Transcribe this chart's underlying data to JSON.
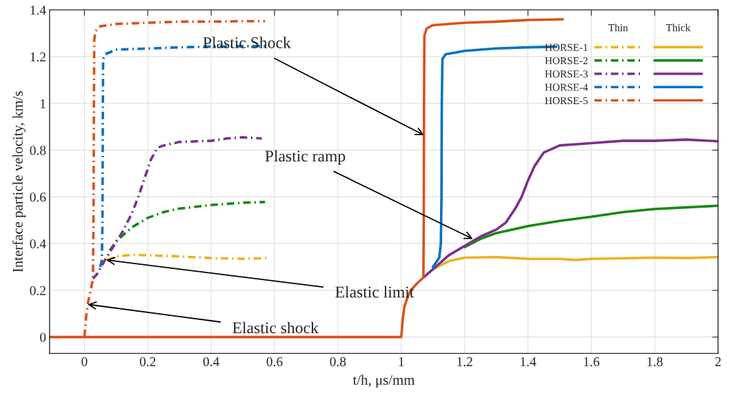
{
  "chart_data": {
    "type": "line",
    "xlabel": "t/h, μs/mm",
    "ylabel": "Interface particle velocity, km/s",
    "xlim": [
      -0.11,
      2
    ],
    "ylim": [
      -0.07,
      1.4
    ],
    "xticks": [
      0,
      0.2,
      0.4,
      0.6,
      0.8,
      1,
      1.2,
      1.4,
      1.6,
      1.8,
      2
    ],
    "yticks": [
      0,
      0.2,
      0.4,
      0.6,
      0.8,
      1,
      1.2,
      1.4
    ],
    "grid": true,
    "legend": "top right",
    "annotations": [
      {
        "text": "Plastic Shock",
        "x": 1.072,
        "y": 0.864
      },
      {
        "text": "Plastic ramp",
        "x": 1.226,
        "y": 0.42
      },
      {
        "text": "Elastic limit",
        "x": 0.069,
        "y": 0.33
      },
      {
        "text": "Elastic shock",
        "x": 0.01,
        "y": 0.14
      },
      "Thin",
      "Thick"
    ],
    "series": [
      {
        "name": "HORSE-1",
        "color": "#edb120",
        "line_style": "dashdot",
        "x": [
          0.07,
          0.1,
          0.15,
          0.2,
          0.3,
          0.4,
          0.5,
          0.58
        ],
        "values": [
          0.33,
          0.345,
          0.352,
          0.35,
          0.345,
          0.338,
          0.335,
          0.338
        ]
      },
      {
        "name": "HORSE-2",
        "color": "#128a12",
        "line_style": "dashdot",
        "x": [
          0.08,
          0.1,
          0.15,
          0.2,
          0.25,
          0.3,
          0.4,
          0.5,
          0.57
        ],
        "values": [
          0.37,
          0.41,
          0.47,
          0.51,
          0.535,
          0.55,
          0.565,
          0.575,
          0.578
        ]
      },
      {
        "name": "HORSE-3",
        "color": "#7e2f8e",
        "line_style": "dashdot",
        "x": [
          0.027,
          0.04,
          0.065,
          0.12,
          0.15,
          0.17,
          0.19,
          0.21,
          0.23,
          0.25,
          0.3,
          0.4,
          0.45,
          0.5,
          0.56
        ],
        "values": [
          0.25,
          0.27,
          0.33,
          0.45,
          0.53,
          0.6,
          0.68,
          0.76,
          0.81,
          0.82,
          0.835,
          0.84,
          0.85,
          0.855,
          0.85
        ]
      },
      {
        "name": "HORSE-4",
        "color": "#0072bd",
        "line_style": "dashdot",
        "x": [
          0.05,
          0.055,
          0.057,
          0.058,
          0.059,
          0.065,
          0.1,
          0.2,
          0.3,
          0.4,
          0.5,
          0.57
        ],
        "values": [
          0.3,
          0.33,
          0.5,
          0.9,
          1.19,
          1.21,
          1.23,
          1.235,
          1.24,
          1.243,
          1.245,
          1.245
        ]
      },
      {
        "name": "HORSE-5",
        "color": "#d95319",
        "line_style": "dashdot",
        "x": [
          0,
          0.005,
          0.01,
          0.02,
          0.027,
          0.029,
          0.03,
          0.031,
          0.035,
          0.05,
          0.1,
          0.2,
          0.3,
          0.4,
          0.5,
          0.57
        ],
        "values": [
          0,
          0.08,
          0.14,
          0.2,
          0.25,
          0.6,
          1.0,
          1.27,
          1.31,
          1.33,
          1.34,
          1.345,
          1.35,
          1.35,
          1.352,
          1.352
        ]
      },
      {
        "color": "#edb120",
        "line_style": "solid",
        "x": [
          1.1,
          1.15,
          1.2,
          1.3,
          1.4,
          1.5,
          1.55,
          1.6,
          1.7,
          1.8,
          1.9,
          2.0
        ],
        "values": [
          0.29,
          0.325,
          0.34,
          0.342,
          0.335,
          0.335,
          0.33,
          0.335,
          0.337,
          0.34,
          0.338,
          0.342
        ]
      },
      {
        "color": "#128a12",
        "line_style": "solid",
        "x": [
          1.2,
          1.25,
          1.3,
          1.4,
          1.5,
          1.6,
          1.7,
          1.8,
          1.9,
          2.0
        ],
        "values": [
          0.385,
          0.42,
          0.445,
          0.475,
          0.497,
          0.515,
          0.535,
          0.548,
          0.555,
          0.562
        ]
      },
      {
        "color": "#7e2f8e",
        "line_style": "solid",
        "x": [
          1.07,
          1.15,
          1.25,
          1.3,
          1.33,
          1.36,
          1.38,
          1.4,
          1.42,
          1.45,
          1.5,
          1.6,
          1.7,
          1.8,
          1.9,
          2.0
        ],
        "values": [
          0.255,
          0.35,
          0.43,
          0.46,
          0.49,
          0.55,
          0.6,
          0.67,
          0.73,
          0.79,
          0.82,
          0.83,
          0.84,
          0.84,
          0.845,
          0.838
        ]
      },
      {
        "color": "#0072bd",
        "line_style": "solid",
        "x": [
          1.1,
          1.12,
          1.125,
          1.127,
          1.128,
          1.13,
          1.14,
          1.2,
          1.3,
          1.4,
          1.49
        ],
        "values": [
          0.3,
          0.34,
          0.4,
          0.6,
          1.0,
          1.19,
          1.21,
          1.225,
          1.235,
          1.24,
          1.243
        ]
      },
      {
        "color": "#d95319",
        "line_style": "solid",
        "x": [
          -0.11,
          1.0,
          1.005,
          1.01,
          1.02,
          1.03,
          1.05,
          1.07,
          1.071,
          1.072,
          1.073,
          1.08,
          1.1,
          1.2,
          1.3,
          1.4,
          1.51
        ],
        "values": [
          0,
          0,
          0.08,
          0.13,
          0.17,
          0.2,
          0.23,
          0.255,
          0.5,
          1.0,
          1.29,
          1.32,
          1.335,
          1.345,
          1.35,
          1.357,
          1.36
        ]
      }
    ]
  }
}
